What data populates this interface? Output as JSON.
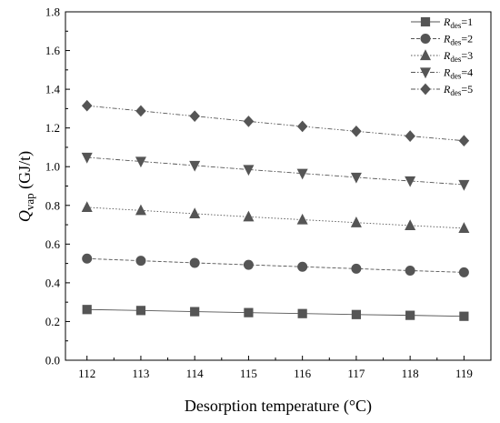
{
  "chart_data": {
    "type": "line",
    "title": "",
    "xlabel": "Desorption temperature  (°C)",
    "ylabel_main": "Q",
    "ylabel_sub": "vap",
    "ylabel_unit": " (GJ/t)",
    "x": [
      112,
      113,
      114,
      115,
      116,
      117,
      118,
      119
    ],
    "xlim": [
      111.6,
      119.5
    ],
    "ylim": [
      0.0,
      1.8
    ],
    "yticks": [
      0.0,
      0.2,
      0.4,
      0.6,
      0.8,
      1.0,
      1.2,
      1.4,
      1.6,
      1.8
    ],
    "ytick_labels": [
      "0.0",
      "0.2",
      "0.4",
      "0.6",
      "0.8",
      "1.0",
      "1.2",
      "1.4",
      "1.6",
      "1.8"
    ],
    "xtick_labels": [
      "112",
      "113",
      "114",
      "115",
      "116",
      "117",
      "118",
      "119"
    ],
    "grid": false,
    "legend_position": "top-right",
    "series_color": "#555555",
    "series": [
      {
        "label_main": "R",
        "label_sub": "des",
        "label_tail": "=1",
        "marker": "square",
        "line": "solid",
        "values": [
          0.262,
          0.257,
          0.251,
          0.246,
          0.241,
          0.236,
          0.232,
          0.227
        ]
      },
      {
        "label_main": "R",
        "label_sub": "des",
        "label_tail": "=2",
        "marker": "circle",
        "line": "dashed",
        "values": [
          0.525,
          0.514,
          0.503,
          0.493,
          0.483,
          0.473,
          0.463,
          0.454
        ]
      },
      {
        "label_main": "R",
        "label_sub": "des",
        "label_tail": "=3",
        "marker": "triangle-up",
        "line": "dotted",
        "values": [
          0.79,
          0.774,
          0.757,
          0.741,
          0.726,
          0.711,
          0.696,
          0.682
        ]
      },
      {
        "label_main": "R",
        "label_sub": "des",
        "label_tail": "=4",
        "marker": "triangle-down",
        "line": "dashdot",
        "values": [
          1.048,
          1.027,
          1.006,
          0.985,
          0.965,
          0.945,
          0.926,
          0.907
        ]
      },
      {
        "label_main": "R",
        "label_sub": "des",
        "label_tail": "=5",
        "marker": "diamond",
        "line": "dashdotdot",
        "values": [
          1.315,
          1.288,
          1.261,
          1.234,
          1.208,
          1.183,
          1.158,
          1.134
        ]
      }
    ]
  }
}
